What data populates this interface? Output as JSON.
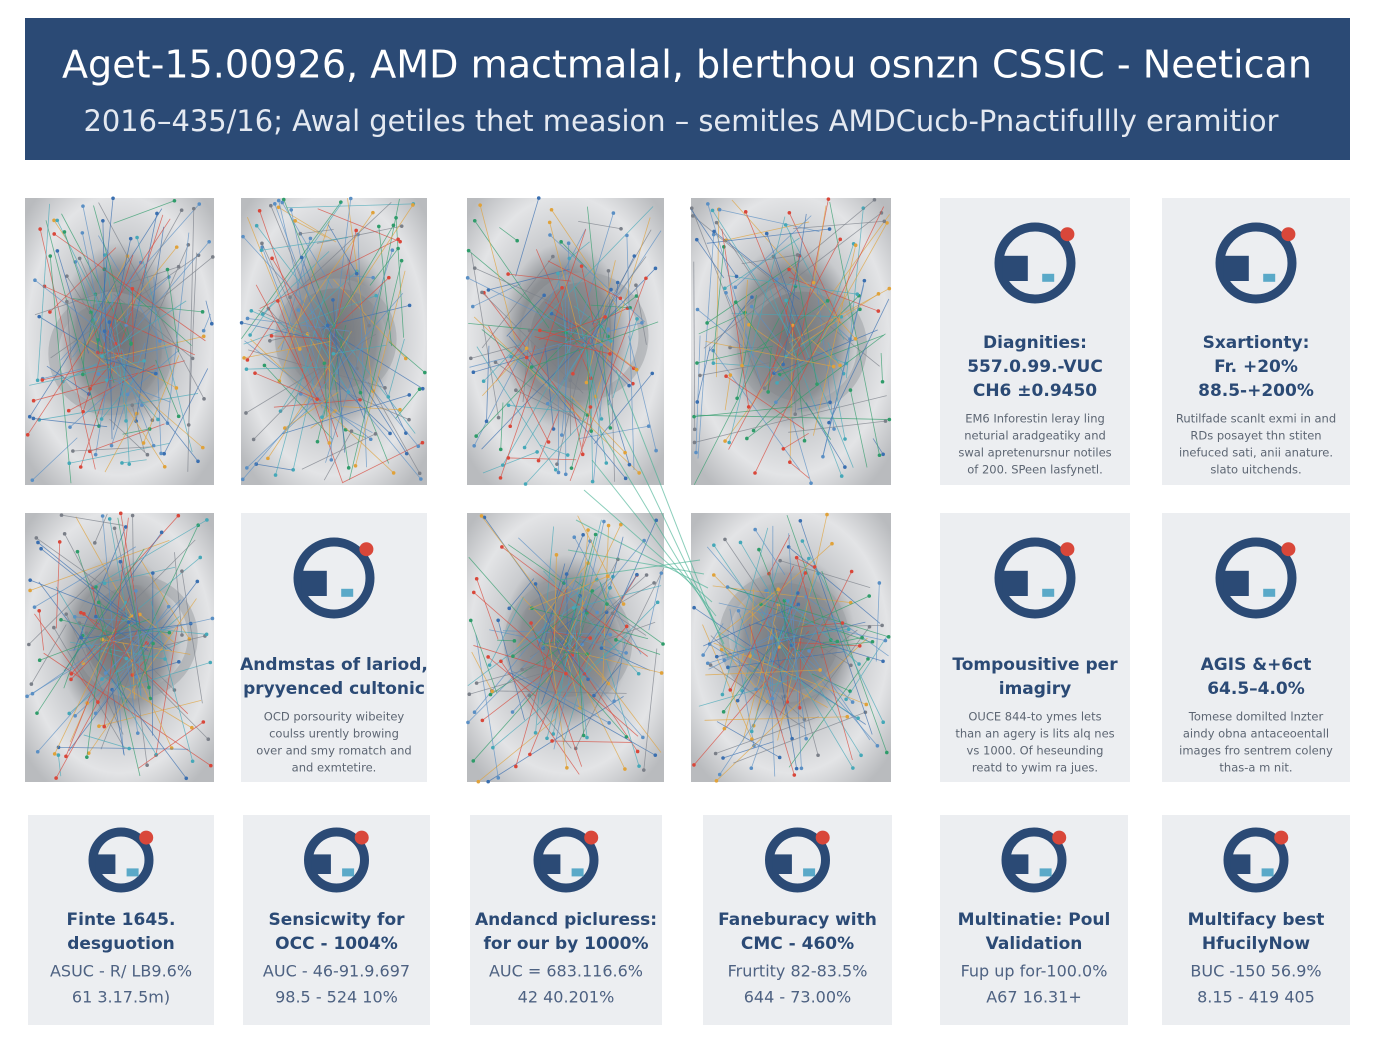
{
  "header": {
    "title": "Aget-15.00926, AMD mactmalal, blerthou osnzn CSSIC - Neetican",
    "subtitle": "2016–435/16; Awal getiles thet measion – semitles AMDCucb-Pnactifullly eramitior"
  },
  "cards": [
    {
      "title": [
        "Diagnities:"
      ],
      "stats": [
        "557.0.99.-VUC",
        "CH6 ±0.9450"
      ],
      "description": [
        "EM6 Inforestin leray ling",
        "neturial aradgeatiky and",
        "swal apretenursnur notiles",
        "of 200. SPeen lasfynetl."
      ]
    },
    {
      "title": [
        "Sxartionty:"
      ],
      "stats": [
        "Fr. +20%",
        "88.5-+200%"
      ],
      "description": [
        "Rutilfade scanlt exmi in and",
        "RDs posayet thn stiten",
        "inefuced sati, anii anature.",
        "slato uitchends."
      ]
    },
    {
      "title": [
        "Andmstas of lariod,",
        "pryyenced cultonic"
      ],
      "stats": [],
      "description": [
        "OCD porsourity wibeitey",
        "coulss urently browing",
        "over and smy romatch and",
        "and exmtetire."
      ]
    },
    {
      "title": [
        "Tompousitive per",
        "imagiry"
      ],
      "stats": [],
      "description": [
        "OUCE 844-to ymes lets",
        "than an agery is lits alq nes",
        "vs 1000. Of heseunding",
        "reatd to ywim ra jues."
      ]
    },
    {
      "title": [
        "AGIS &+6ct",
        "64.5–4.0%"
      ],
      "stats": [],
      "description": [
        "Tomese domilted lnzter",
        "aindy obna antaceoentall",
        "images fro sentrem coleny",
        "thas-a m nit."
      ]
    },
    {
      "title": [
        "Finte 1645.",
        "desguotion"
      ],
      "stats": [
        "ASUC - R/ LB9.6%",
        "61 3.17.5m)"
      ],
      "description": []
    },
    {
      "title": [
        "Sensicwity for",
        "OCC - 1004%"
      ],
      "stats": [
        "AUC - 46-91.9.697",
        "98.5 - 524 10%"
      ],
      "description": []
    },
    {
      "title": [
        "Andancd picluress:",
        "for our by 1000%"
      ],
      "stats": [
        "AUC = 683.116.6%",
        "42 40.201%"
      ],
      "description": []
    },
    {
      "title": [
        "Faneburacy with",
        "CMC - 460%"
      ],
      "stats": [
        "Frurtity 82-83.5%",
        "644 - 73.00%"
      ],
      "description": []
    },
    {
      "title": [
        "Multinatie: Poul",
        "Validation"
      ],
      "stats": [
        "Fup up for-100.0%",
        "A67 16.31+"
      ],
      "description": []
    },
    {
      "title": [
        "Multifacy best",
        "HfucilyNow"
      ],
      "stats": [
        "BUC -150 56.9%",
        "8.15 - 419 405"
      ],
      "description": []
    }
  ]
}
